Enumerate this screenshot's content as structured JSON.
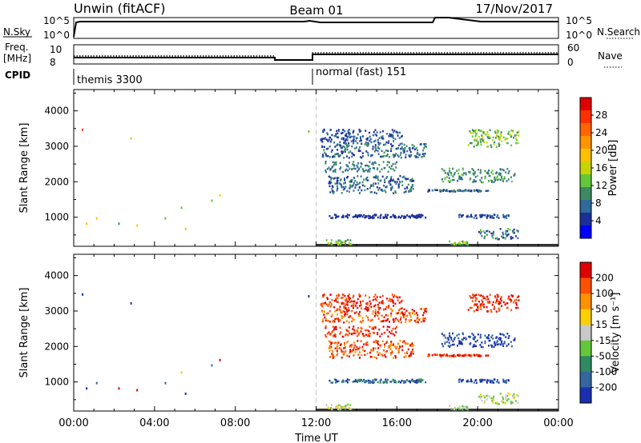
{
  "header": {
    "radar": "Unwin (fitACF)",
    "beam": "Beam 01",
    "date": "17/Nov/2017"
  },
  "top_panels": {
    "nsky_label": "N.Sky",
    "nsky_ticks": [
      "10^5",
      "10^0"
    ],
    "nsearch_label": "N.Search",
    "nsearch_ticks": [
      "10^5",
      "10^0"
    ],
    "freq_label_1": "Freq.",
    "freq_label_2": "[MHz]",
    "freq_ticks": [
      "10",
      "8"
    ],
    "nave_label": "Nave",
    "nave_ticks": [
      "60",
      "0"
    ],
    "cpid_label": "CPID",
    "cpid_modes": [
      "themis 3300",
      "normal (fast) 151"
    ]
  },
  "colorbars": {
    "power": {
      "label": "Power [dB]",
      "ticks": [
        "28",
        "24",
        "20",
        "16",
        "12",
        "8",
        "4"
      ],
      "colors": [
        "#0000ff",
        "#1a2f9a",
        "#2e6a9a",
        "#3d8a62",
        "#62c83a",
        "#c8d400",
        "#ffc000",
        "#ff9400",
        "#ff6400",
        "#ff3000",
        "#e00000"
      ]
    },
    "velocity": {
      "label": "Velocity [m s⁻¹]",
      "ticks": [
        "200",
        "100",
        "50",
        "15",
        "-15",
        "-50",
        "-100",
        "-200"
      ],
      "colors": [
        "#1a2fb0",
        "#3466a0",
        "#2e8a62",
        "#62c83a",
        "#c8c8c8",
        "#ffd000",
        "#ff9000",
        "#ff5000",
        "#e00000"
      ]
    }
  },
  "chart_data": [
    {
      "type": "scatter",
      "title": "Power",
      "xlabel": "Time UT",
      "ylabel": "Slant Range [km]",
      "xlim": [
        0,
        24
      ],
      "ylim": [
        180,
        4600
      ],
      "xticks": [
        "00:00",
        "04:00",
        "08:00",
        "12:00",
        "16:00",
        "20:00",
        "00:00"
      ],
      "yticks": [
        1000,
        2000,
        3000,
        4000
      ],
      "colorbar": "Power [dB]",
      "points": [
        [
          0.4,
          3500,
          9
        ],
        [
          0.6,
          850,
          6
        ],
        [
          1.1,
          1000,
          6
        ],
        [
          2.2,
          850,
          3
        ],
        [
          2.8,
          3250,
          6
        ],
        [
          4.5,
          1000,
          4
        ],
        [
          5.3,
          1300,
          4
        ],
        [
          5.5,
          700,
          6
        ],
        [
          6.8,
          1500,
          4
        ],
        [
          11.6,
          3450,
          4
        ],
        [
          7.2,
          1650,
          6
        ],
        [
          3.1,
          800,
          6
        ]
      ],
      "bands": [
        [
          12.2,
          16.3,
          3100,
          3500,
          [
            1,
            2
          ]
        ],
        [
          12.2,
          17.5,
          2700,
          3100,
          [
            1,
            3
          ]
        ],
        [
          12.4,
          16.0,
          2300,
          2600,
          [
            2,
            3
          ]
        ],
        [
          12.6,
          16.8,
          1700,
          2200,
          [
            1,
            3
          ]
        ],
        [
          12.6,
          17.4,
          1000,
          1100,
          [
            1,
            1
          ]
        ],
        [
          12.4,
          13.8,
          250,
          400,
          [
            3,
            5
          ]
        ],
        [
          17.5,
          20.5,
          1750,
          1800,
          [
            1,
            3
          ]
        ],
        [
          18.2,
          21.8,
          2000,
          2400,
          [
            2,
            4
          ]
        ],
        [
          18.5,
          19.5,
          250,
          350,
          [
            3,
            5
          ]
        ],
        [
          20.0,
          22.0,
          400,
          700,
          [
            1,
            4
          ]
        ],
        [
          19.0,
          21.5,
          1000,
          1100,
          [
            1,
            2
          ]
        ],
        [
          19.5,
          22.0,
          3000,
          3500,
          [
            3,
            5
          ]
        ]
      ]
    },
    {
      "type": "scatter",
      "title": "Velocity",
      "xlabel": "Time UT",
      "ylabel": "Slant Range [km]",
      "xlim": [
        0,
        24
      ],
      "ylim": [
        180,
        4600
      ],
      "xticks": [
        "00:00",
        "04:00",
        "08:00",
        "12:00",
        "16:00",
        "20:00",
        "00:00"
      ],
      "yticks": [
        1000,
        2000,
        3000,
        4000
      ],
      "colorbar": "Velocity [m s⁻¹]",
      "points": [
        [
          0.4,
          3500,
          0
        ],
        [
          0.6,
          850,
          0
        ],
        [
          1.1,
          1000,
          1
        ],
        [
          2.2,
          850,
          8
        ],
        [
          2.8,
          3250,
          0
        ],
        [
          4.5,
          1000,
          1
        ],
        [
          5.3,
          1300,
          5
        ],
        [
          5.5,
          700,
          0
        ],
        [
          6.8,
          1500,
          1
        ],
        [
          11.6,
          3450,
          0
        ],
        [
          7.2,
          1650,
          8
        ],
        [
          3.1,
          800,
          8
        ]
      ],
      "bands": [
        [
          12.2,
          16.3,
          3100,
          3500,
          [
            7,
            8
          ]
        ],
        [
          12.2,
          17.5,
          2700,
          3100,
          [
            6,
            8
          ]
        ],
        [
          12.4,
          16.0,
          2300,
          2600,
          [
            7,
            8
          ]
        ],
        [
          12.6,
          16.8,
          1700,
          2200,
          [
            6,
            8
          ]
        ],
        [
          12.6,
          17.4,
          1000,
          1100,
          [
            0,
            2
          ]
        ],
        [
          12.4,
          13.8,
          250,
          400,
          [
            3,
            5
          ]
        ],
        [
          17.5,
          20.5,
          1750,
          1800,
          [
            7,
            8
          ]
        ],
        [
          18.2,
          21.8,
          2000,
          2400,
          [
            0,
            1
          ]
        ],
        [
          18.5,
          19.5,
          250,
          350,
          [
            3,
            4
          ]
        ],
        [
          20.0,
          22.0,
          400,
          700,
          [
            3,
            5
          ]
        ],
        [
          19.0,
          21.5,
          1000,
          1100,
          [
            0,
            1
          ]
        ],
        [
          19.5,
          22.0,
          3000,
          3500,
          [
            7,
            8
          ]
        ]
      ]
    }
  ]
}
